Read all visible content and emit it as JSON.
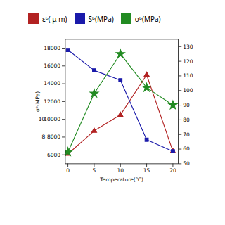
{
  "chart_data": {
    "type": "line",
    "x": [
      0,
      5,
      10,
      15,
      20
    ],
    "xlabel": "Temperature(℃)",
    "ylabel": "σᵇ(MPa)",
    "xlim": [
      -0.5,
      21
    ],
    "xticks": [
      0,
      5,
      10,
      15,
      20
    ],
    "ylim": [
      5000,
      19000
    ],
    "yticks": [
      6000,
      8000,
      10000,
      12000,
      14000,
      16000,
      18000
    ],
    "y2lim": [
      50,
      135
    ],
    "y2ticks": [
      50,
      60,
      70,
      80,
      90,
      100,
      110,
      120,
      130
    ],
    "series": [
      {
        "name": "εᵇ( μ m)",
        "color": "#b22222",
        "marker": "triangle",
        "values": [
          6100,
          8700,
          10500,
          15000,
          6400
        ]
      },
      {
        "name": "Sᵇ(MPa)",
        "color": "#1a1aaa",
        "marker": "square",
        "values": [
          17800,
          15500,
          14400,
          7700,
          6400
        ]
      },
      {
        "name": "σᵇ(MPa)",
        "color": "#228B22",
        "marker": "star",
        "axis": "y2",
        "values": [
          58,
          98,
          125,
          102,
          90
        ]
      }
    ],
    "annotations": [
      {
        "text": "8",
        "y": 8000
      },
      {
        "text": "10",
        "y": 10000
      }
    ]
  }
}
